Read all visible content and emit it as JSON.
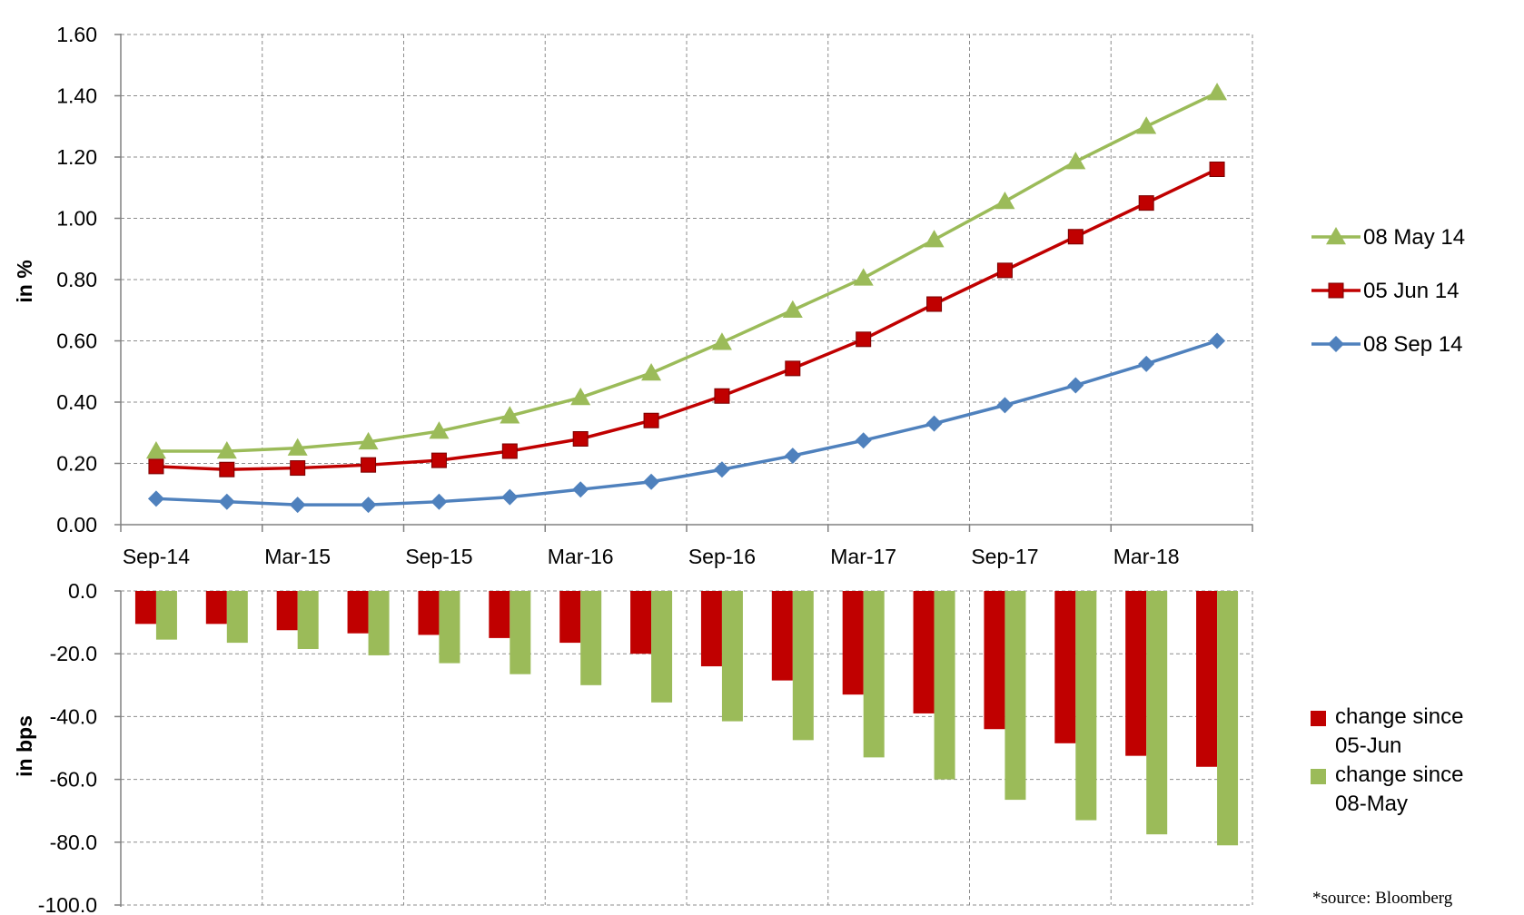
{
  "chart_data": [
    {
      "type": "line",
      "ylabel": "in %",
      "ylim": [
        0,
        1.6
      ],
      "yticks": [
        "0.00",
        "0.20",
        "0.40",
        "0.60",
        "0.80",
        "1.00",
        "1.20",
        "1.40",
        "1.60"
      ],
      "xtick_labels": [
        "Sep-14",
        "Mar-15",
        "Sep-15",
        "Mar-16",
        "Sep-16",
        "Mar-17",
        "Sep-17",
        "Mar-18"
      ],
      "grid": true,
      "legend_position": "right",
      "series": [
        {
          "name": "08 May 14",
          "color": "#9BBB59",
          "marker": "triangle",
          "values": [
            0.24,
            0.24,
            0.25,
            0.27,
            0.305,
            0.355,
            0.415,
            0.495,
            0.595,
            0.7,
            0.805,
            0.93,
            1.055,
            1.185,
            1.3,
            1.41
          ]
        },
        {
          "name": "05 Jun 14",
          "color": "#C00000",
          "marker": "square",
          "values": [
            0.19,
            0.18,
            0.185,
            0.195,
            0.21,
            0.24,
            0.28,
            0.34,
            0.42,
            0.51,
            0.605,
            0.72,
            0.83,
            0.94,
            1.05,
            1.16
          ]
        },
        {
          "name": "08 Sep 14",
          "color": "#4F81BD",
          "marker": "diamond",
          "values": [
            0.085,
            0.075,
            0.065,
            0.065,
            0.075,
            0.09,
            0.115,
            0.14,
            0.18,
            0.225,
            0.275,
            0.33,
            0.39,
            0.455,
            0.525,
            0.6
          ]
        }
      ]
    },
    {
      "type": "bar",
      "ylabel": "in bps",
      "ylim": [
        -100,
        0
      ],
      "yticks": [
        "0.0",
        "-20.0",
        "-40.0",
        "-60.0",
        "-80.0",
        "-100.0"
      ],
      "grid": true,
      "legend_position": "right",
      "series": [
        {
          "name_lines": [
            "change since",
            "05-Jun"
          ],
          "color": "#C00000",
          "values": [
            -10.5,
            -10.5,
            -12.5,
            -13.5,
            -14,
            -15,
            -16.5,
            -20,
            -24,
            -28.5,
            -33,
            -39,
            -44,
            -48.5,
            -52.5,
            -56
          ]
        },
        {
          "name_lines": [
            "change since",
            "08-May"
          ],
          "color": "#9BBB59",
          "values": [
            -15.5,
            -16.5,
            -18.5,
            -20.5,
            -23,
            -26.5,
            -30,
            -35.5,
            -41.5,
            -47.5,
            -53,
            -60,
            -66.5,
            -73,
            -77.5,
            -81
          ]
        }
      ]
    }
  ],
  "source_note": "*source: Bloomberg"
}
